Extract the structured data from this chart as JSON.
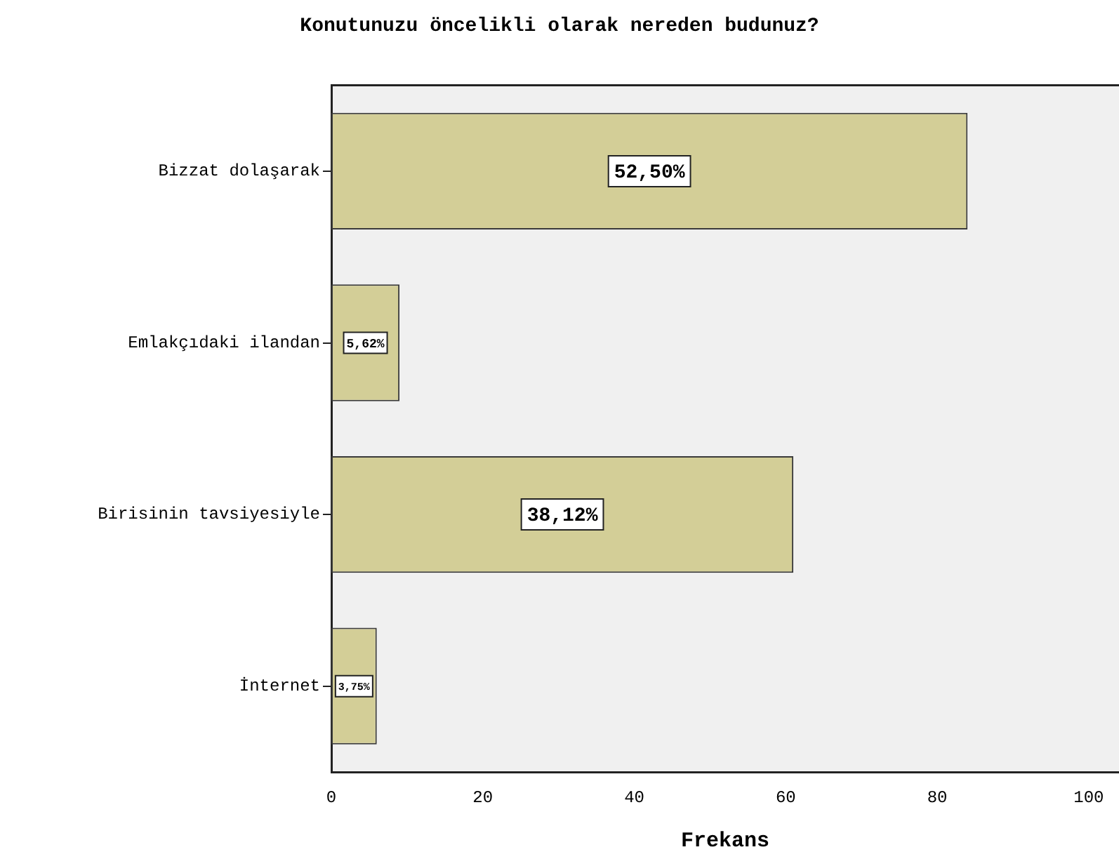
{
  "chart_data": {
    "type": "bar",
    "orientation": "horizontal",
    "title": "Konutunuzu öncelikli olarak nereden budunuz?",
    "xlabel": "Frekans",
    "categories": [
      "Bizzat dolaşarak",
      "Emlakçıdaki ilandan",
      "Birisinin tavsiyesiyle",
      "İnternet"
    ],
    "values": [
      84,
      9,
      61,
      6
    ],
    "color": "#d3ce97",
    "annotations": [
      "52,50%",
      "5,62%",
      "38,12%",
      "3,75%"
    ],
    "xlim": [
      0,
      104
    ],
    "xticks": [
      0,
      20,
      40,
      60,
      80,
      100
    ],
    "grid": false,
    "legend": false
  }
}
